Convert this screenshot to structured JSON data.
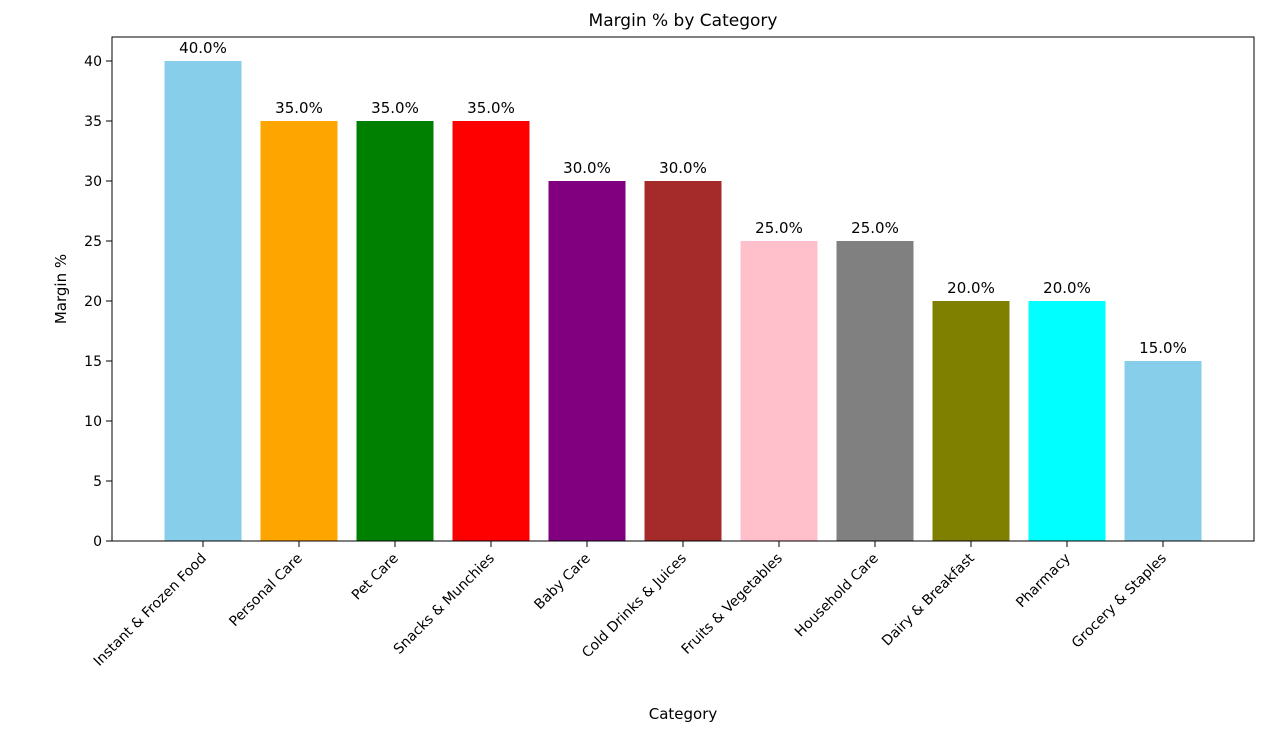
{
  "chart_data": {
    "type": "bar",
    "title": "Margin % by Category",
    "xlabel": "Category",
    "ylabel": "Margin %",
    "ylim": [
      0,
      42
    ],
    "yticks": [
      0,
      5,
      10,
      15,
      20,
      25,
      30,
      35,
      40
    ],
    "grid": false,
    "categories": [
      "Instant & Frozen Food",
      "Personal Care",
      "Pet Care",
      "Snacks & Munchies",
      "Baby Care",
      "Cold Drinks & Juices",
      "Fruits & Vegetables",
      "Household Care",
      "Dairy & Breakfast",
      "Pharmacy",
      "Grocery & Staples"
    ],
    "values": [
      40.0,
      35.0,
      35.0,
      35.0,
      30.0,
      30.0,
      25.0,
      25.0,
      20.0,
      20.0,
      15.0
    ],
    "data_labels": [
      "40.0%",
      "35.0%",
      "35.0%",
      "35.0%",
      "30.0%",
      "30.0%",
      "25.0%",
      "25.0%",
      "20.0%",
      "20.0%",
      "15.0%"
    ],
    "colors": [
      "#87ceeb",
      "#ffa500",
      "#008000",
      "#ff0000",
      "#800080",
      "#a52a2a",
      "#ffc0cb",
      "#808080",
      "#808000",
      "#00ffff",
      "#87ceeb"
    ]
  }
}
